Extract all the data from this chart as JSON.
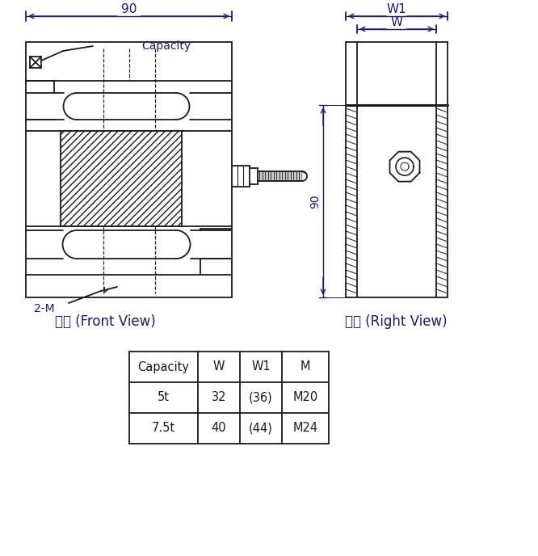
{
  "line_color": "#1a1a1a",
  "text_color": "#1a1a1a",
  "dim_color": "#1a1a6e",
  "bg_color": "#ffffff",
  "front_view_label": "主视 (Front View)",
  "right_view_label": "右视 (Right View)",
  "table_headers": [
    "Capacity",
    "W",
    "W1",
    "M"
  ],
  "table_row1": [
    "5t",
    "32",
    "(36)",
    "M20"
  ],
  "table_row2": [
    "7.5t",
    "40",
    "(44)",
    "M24"
  ],
  "dim_90_top": "90",
  "dim_90_right": "90",
  "dim_W": "W",
  "dim_W1": "W1",
  "label_capacity": "Capacity",
  "label_2M": "2-M"
}
